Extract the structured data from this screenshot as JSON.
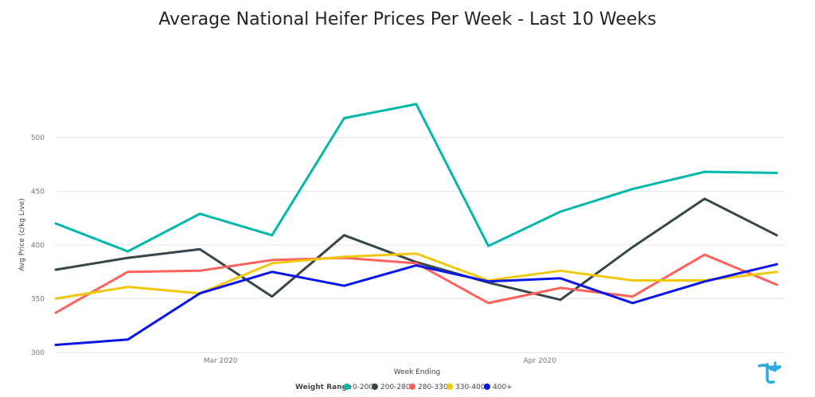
{
  "chart_data": {
    "type": "line",
    "title": "Average National Heifer Prices Per Week - Last 10 Weeks",
    "xlabel": "Week Ending",
    "ylabel": "Avg Price (c/kg Live)",
    "ylim": [
      300,
      545
    ],
    "yticks": [
      300,
      350,
      400,
      450,
      500
    ],
    "grid": "horizontal",
    "x": [
      "2020-02-14",
      "2020-02-21",
      "2020-02-28",
      "2020-03-06",
      "2020-03-13",
      "2020-03-20",
      "2020-03-27",
      "2020-04-03",
      "2020-04-10",
      "2020-04-17",
      "2020-04-24"
    ],
    "xlim": [
      "2020-02-14",
      "2020-04-24"
    ],
    "xticks": [
      {
        "date": "2020-03-01",
        "label": "Mar 2020"
      },
      {
        "date": "2020-04-01",
        "label": "Apr 2020"
      }
    ],
    "legend": {
      "title": "Weight Range",
      "position": "bottom"
    },
    "series": [
      {
        "name": "0-200",
        "color": "#01B8AA",
        "values": [
          420,
          394,
          429,
          409,
          518,
          531,
          399,
          431,
          452,
          468,
          467
        ]
      },
      {
        "name": "200-280",
        "color": "#374649",
        "values": [
          377,
          388,
          396,
          352,
          409,
          384,
          365,
          349,
          398,
          443,
          409
        ]
      },
      {
        "name": "280-330",
        "color": "#FD625E",
        "values": [
          337,
          375,
          376,
          386,
          388,
          383,
          346,
          360,
          352,
          391,
          363
        ]
      },
      {
        "name": "330-400",
        "color": "#F2C80F",
        "values": [
          350,
          361,
          355,
          383,
          389,
          392,
          367,
          376,
          367,
          367,
          375
        ]
      },
      {
        "name": "400+",
        "color": "#0B16E8",
        "values": [
          307,
          312,
          355,
          375,
          362,
          381,
          366,
          369,
          346,
          366,
          382
        ]
      }
    ]
  },
  "logo": {
    "icon": "brand-logo-icon",
    "color": "#2BA9E0"
  }
}
